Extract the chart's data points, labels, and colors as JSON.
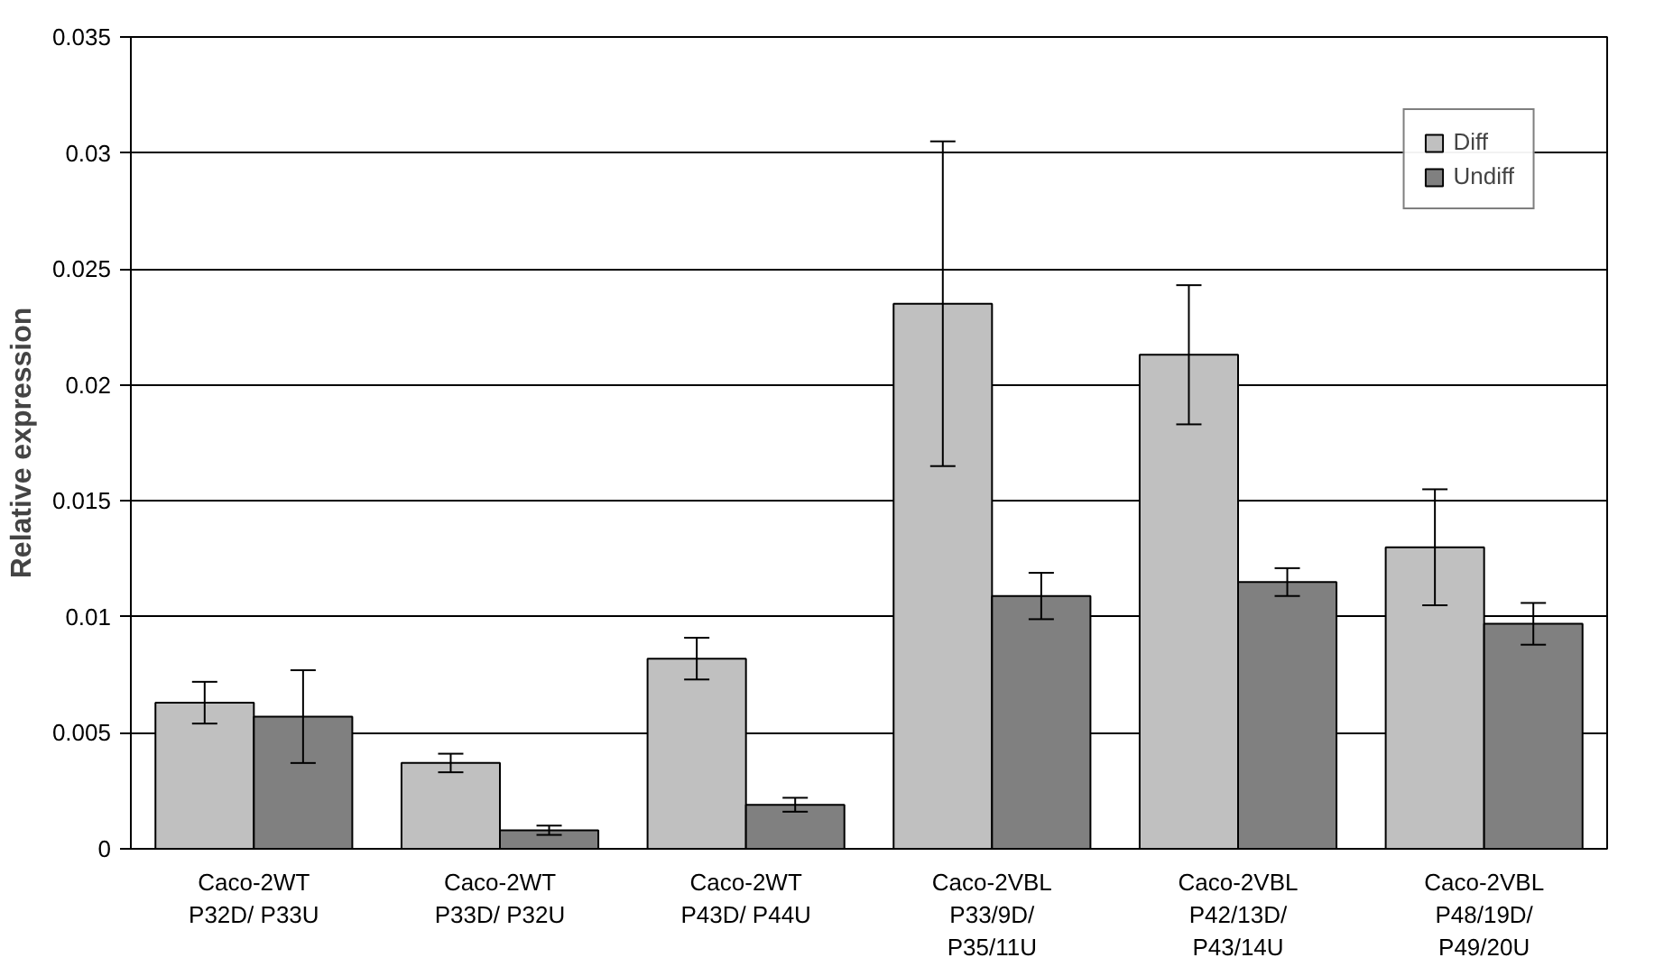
{
  "chart_data": {
    "type": "bar",
    "ylabel": "Relative expression",
    "categories": [
      "Caco-2WT\nP32D/ P33U",
      "Caco-2WT\nP33D/ P32U",
      "Caco-2WT\nP43D/ P44U",
      "Caco-2VBL\nP33/9D/\nP35/11U",
      "Caco-2VBL\nP42/13D/\nP43/14U",
      "Caco-2VBL\nP48/19D/\nP49/20U"
    ],
    "series": [
      {
        "name": "Diff",
        "color": "#c0c0c0",
        "values": [
          0.0063,
          0.0037,
          0.0082,
          0.0235,
          0.0213,
          0.013
        ],
        "errors": [
          0.0009,
          0.0004,
          0.0009,
          0.007,
          0.003,
          0.0025
        ]
      },
      {
        "name": "Undiff",
        "color": "#808080",
        "values": [
          0.0057,
          0.0008,
          0.0019,
          0.0109,
          0.0115,
          0.0097
        ],
        "errors": [
          0.002,
          0.0002,
          0.0003,
          0.001,
          0.0006,
          0.0009
        ]
      }
    ],
    "ylim": [
      0,
      0.035
    ],
    "yticks": [
      0,
      0.005,
      0.01,
      0.015,
      0.02,
      0.025,
      0.03,
      0.035
    ],
    "grid": "y",
    "legend": "top right"
  }
}
